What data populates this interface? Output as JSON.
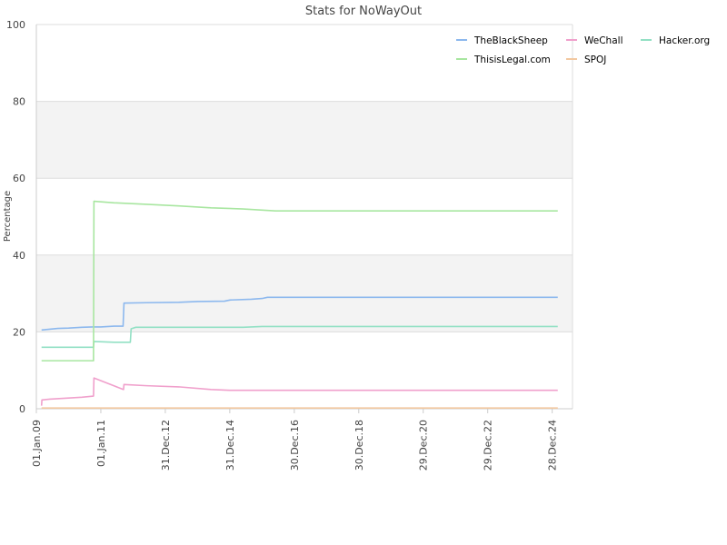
{
  "chart_data": {
    "type": "line",
    "title": "Stats for NoWayOut",
    "xlabel": "",
    "ylabel": "Percentage",
    "ylim": [
      0,
      100
    ],
    "xlim": [
      "2009-01-01",
      "2025-08-15"
    ],
    "y_ticks": [
      0,
      20,
      40,
      60,
      80,
      100
    ],
    "x_ticks": [
      {
        "date": "2009-01-01",
        "label": "01.Jan.09"
      },
      {
        "date": "2011-01-01",
        "label": "01.Jan.11"
      },
      {
        "date": "2012-12-31",
        "label": "31.Dec.12"
      },
      {
        "date": "2014-12-31",
        "label": "31.Dec.14"
      },
      {
        "date": "2016-12-30",
        "label": "30.Dec.16"
      },
      {
        "date": "2018-12-30",
        "label": "30.Dec.18"
      },
      {
        "date": "2020-12-29",
        "label": "29.Dec.20"
      },
      {
        "date": "2022-12-29",
        "label": "29.Dec.22"
      },
      {
        "date": "2024-12-28",
        "label": "28.Dec.24"
      }
    ],
    "grid": true,
    "legend_position": "top-right",
    "series": [
      {
        "name": "TheBlackSheep",
        "color": "#8cb8ee",
        "points": [
          [
            "2009-03-01",
            20.5
          ],
          [
            "2009-06-01",
            20.7
          ],
          [
            "2009-09-01",
            20.9
          ],
          [
            "2010-01-01",
            21.0
          ],
          [
            "2010-06-01",
            21.2
          ],
          [
            "2010-10-01",
            21.3
          ],
          [
            "2011-01-01",
            21.3
          ],
          [
            "2011-06-01",
            21.5
          ],
          [
            "2011-09-10",
            21.5
          ],
          [
            "2011-09-20",
            27.5
          ],
          [
            "2012-06-01",
            27.6
          ],
          [
            "2013-06-01",
            27.7
          ],
          [
            "2014-01-01",
            27.9
          ],
          [
            "2014-11-01",
            28.0
          ],
          [
            "2015-01-01",
            28.3
          ],
          [
            "2015-09-01",
            28.5
          ],
          [
            "2016-01-01",
            28.7
          ],
          [
            "2016-03-01",
            29.0
          ],
          [
            "2025-03-01",
            29.0
          ]
        ]
      },
      {
        "name": "WeChall",
        "color": "#f0a0cc",
        "points": [
          [
            "2009-03-01",
            0.8
          ],
          [
            "2009-03-05",
            2.3
          ],
          [
            "2009-06-01",
            2.5
          ],
          [
            "2010-01-01",
            2.8
          ],
          [
            "2010-06-01",
            3.0
          ],
          [
            "2010-10-10",
            3.3
          ],
          [
            "2010-10-15",
            8.0
          ],
          [
            "2011-09-15",
            5.0
          ],
          [
            "2011-09-20",
            6.3
          ],
          [
            "2012-06-01",
            6.0
          ],
          [
            "2013-06-01",
            5.7
          ],
          [
            "2014-06-01",
            5.0
          ],
          [
            "2015-01-01",
            4.8
          ],
          [
            "2025-03-01",
            4.8
          ]
        ]
      },
      {
        "name": "Hacker.org",
        "color": "#92e0c4",
        "points": [
          [
            "2009-03-01",
            16.0
          ],
          [
            "2010-10-10",
            16.0
          ],
          [
            "2010-10-15",
            17.5
          ],
          [
            "2011-06-01",
            17.3
          ],
          [
            "2011-12-01",
            17.3
          ],
          [
            "2011-12-10",
            20.8
          ],
          [
            "2012-02-01",
            21.2
          ],
          [
            "2015-06-01",
            21.2
          ],
          [
            "2016-01-01",
            21.4
          ],
          [
            "2025-03-01",
            21.4
          ]
        ]
      },
      {
        "name": "ThisisLegal.com",
        "color": "#a8e6a0",
        "points": [
          [
            "2009-03-01",
            12.5
          ],
          [
            "2010-10-10",
            12.5
          ],
          [
            "2010-10-15",
            54.0
          ],
          [
            "2011-06-01",
            53.6
          ],
          [
            "2012-06-01",
            53.2
          ],
          [
            "2013-06-01",
            52.8
          ],
          [
            "2014-06-01",
            52.3
          ],
          [
            "2015-06-01",
            52.0
          ],
          [
            "2016-06-01",
            51.5
          ],
          [
            "2025-03-01",
            51.5
          ]
        ]
      },
      {
        "name": "SPOJ",
        "color": "#f2c8a0",
        "points": [
          [
            "2009-03-01",
            0.2
          ],
          [
            "2025-03-01",
            0.2
          ]
        ]
      }
    ]
  }
}
